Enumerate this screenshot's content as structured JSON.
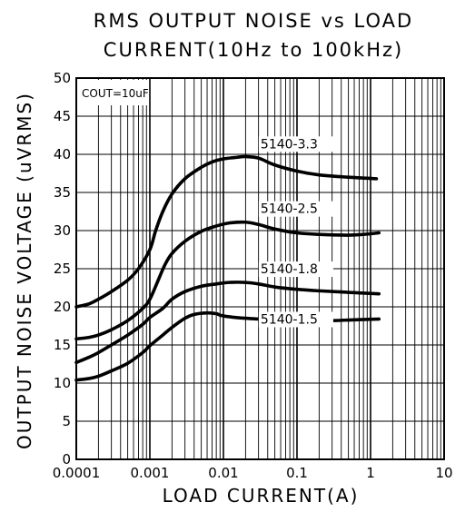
{
  "chart_data": {
    "type": "line",
    "title_lines": [
      "RMS OUTPUT NOISE vs LOAD",
      "CURRENT(10Hz to 100kHz)"
    ],
    "xlabel": "LOAD CURRENT(A)",
    "ylabel": "OUTPUT NOISE VOLTAGE (uVRMS)",
    "x_scale": "log",
    "xlim": [
      0.0001,
      10
    ],
    "ylim": [
      0,
      50
    ],
    "x_tick_labels": [
      "0.0001",
      "0.001",
      "0.01",
      "0.1",
      "1",
      "10"
    ],
    "y_tick_labels": [
      "0",
      "5",
      "10",
      "15",
      "20",
      "25",
      "30",
      "35",
      "40",
      "45",
      "50"
    ],
    "grid": true,
    "annotation": "COUT=10uF",
    "series": [
      {
        "name": "5140-3.3",
        "points": [
          [
            0.0001,
            20.0
          ],
          [
            0.00015,
            20.4
          ],
          [
            0.0002,
            21.0
          ],
          [
            0.0003,
            22.0
          ],
          [
            0.0005,
            23.5
          ],
          [
            0.0007,
            25.0
          ],
          [
            0.001,
            27.5
          ],
          [
            0.0012,
            30.0
          ],
          [
            0.0015,
            32.5
          ],
          [
            0.002,
            34.8
          ],
          [
            0.003,
            36.8
          ],
          [
            0.005,
            38.3
          ],
          [
            0.007,
            39.0
          ],
          [
            0.01,
            39.4
          ],
          [
            0.015,
            39.6
          ],
          [
            0.02,
            39.7
          ],
          [
            0.03,
            39.5
          ],
          [
            0.05,
            38.6
          ],
          [
            0.1,
            37.8
          ],
          [
            0.2,
            37.3
          ],
          [
            0.5,
            37.0
          ],
          [
            1.2,
            36.8
          ]
        ]
      },
      {
        "name": "5140-2.5",
        "points": [
          [
            0.0001,
            15.8
          ],
          [
            0.00015,
            16.0
          ],
          [
            0.0002,
            16.3
          ],
          [
            0.0003,
            17.0
          ],
          [
            0.0005,
            18.2
          ],
          [
            0.0008,
            19.8
          ],
          [
            0.001,
            21.0
          ],
          [
            0.0013,
            23.5
          ],
          [
            0.0016,
            25.5
          ],
          [
            0.002,
            27.0
          ],
          [
            0.003,
            28.6
          ],
          [
            0.005,
            29.9
          ],
          [
            0.008,
            30.6
          ],
          [
            0.012,
            31.0
          ],
          [
            0.02,
            31.1
          ],
          [
            0.03,
            30.8
          ],
          [
            0.05,
            30.2
          ],
          [
            0.1,
            29.7
          ],
          [
            0.2,
            29.5
          ],
          [
            0.5,
            29.4
          ],
          [
            0.8,
            29.5
          ],
          [
            1.3,
            29.7
          ]
        ]
      },
      {
        "name": "5140-1.8",
        "points": [
          [
            0.0001,
            12.7
          ],
          [
            0.00015,
            13.4
          ],
          [
            0.0002,
            14.0
          ],
          [
            0.0003,
            15.0
          ],
          [
            0.0005,
            16.3
          ],
          [
            0.0008,
            17.7
          ],
          [
            0.001,
            18.6
          ],
          [
            0.0015,
            19.8
          ],
          [
            0.002,
            21.0
          ],
          [
            0.003,
            22.0
          ],
          [
            0.005,
            22.7
          ],
          [
            0.008,
            23.0
          ],
          [
            0.012,
            23.2
          ],
          [
            0.02,
            23.2
          ],
          [
            0.03,
            23.0
          ],
          [
            0.05,
            22.6
          ],
          [
            0.1,
            22.3
          ],
          [
            0.2,
            22.1
          ],
          [
            0.5,
            21.9
          ],
          [
            1.3,
            21.7
          ]
        ]
      },
      {
        "name": "5140-1.5",
        "points": [
          [
            0.0001,
            10.4
          ],
          [
            0.00015,
            10.6
          ],
          [
            0.0002,
            10.9
          ],
          [
            0.0003,
            11.6
          ],
          [
            0.0005,
            12.6
          ],
          [
            0.0008,
            14.0
          ],
          [
            0.001,
            14.9
          ],
          [
            0.0015,
            16.3
          ],
          [
            0.002,
            17.3
          ],
          [
            0.003,
            18.5
          ],
          [
            0.004,
            19.0
          ],
          [
            0.006,
            19.2
          ],
          [
            0.008,
            19.1
          ],
          [
            0.01,
            18.8
          ],
          [
            0.02,
            18.5
          ],
          [
            0.05,
            18.3
          ],
          [
            0.1,
            18.2
          ],
          [
            0.3,
            18.2
          ],
          [
            0.6,
            18.3
          ],
          [
            1.3,
            18.4
          ]
        ]
      }
    ],
    "series_label_positions": [
      {
        "x": 0.032,
        "y": 40.8
      },
      {
        "x": 0.032,
        "y": 32.3
      },
      {
        "x": 0.032,
        "y": 24.4
      },
      {
        "x": 0.032,
        "y": 17.8
      }
    ]
  }
}
